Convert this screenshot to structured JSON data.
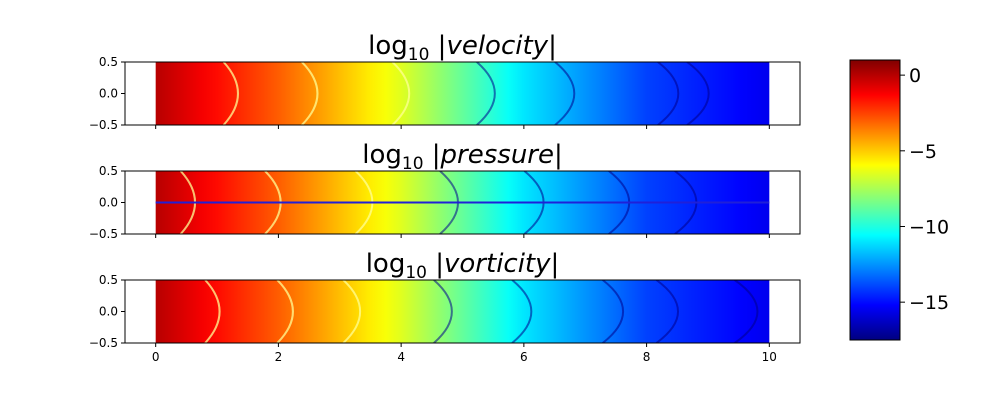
{
  "chart_data": [
    {
      "type": "heatmap",
      "title": {
        "prefix": "log",
        "subscript": "10",
        "word": "velocity"
      },
      "x_range": [
        0,
        10
      ],
      "y_range": [
        -0.5,
        0.5
      ],
      "xlim": [
        -0.5,
        10.5
      ],
      "ylim": [
        -0.5,
        0.5
      ],
      "yticks": [
        {
          "v": 0.5,
          "label": "0.5"
        },
        {
          "v": 0.0,
          "label": "0.0"
        },
        {
          "v": -0.5,
          "label": "−0.5"
        }
      ],
      "xticks_labeled": false,
      "field": {
        "log10_at_x": [
          [
            0,
            0
          ],
          [
            2,
            -3
          ],
          [
            4,
            -6.5
          ],
          [
            6,
            -11
          ],
          [
            8,
            -14
          ],
          [
            10,
            -15.5
          ]
        ],
        "arc_fronts_x": [
          1.4,
          2.7,
          4.2,
          5.6,
          6.9,
          8.6,
          9.1
        ],
        "centerline_line": false
      }
    },
    {
      "type": "heatmap",
      "title": {
        "prefix": "log",
        "subscript": "10",
        "word": "pressure"
      },
      "x_range": [
        0,
        10
      ],
      "y_range": [
        -0.5,
        0.5
      ],
      "xlim": [
        -0.5,
        10.5
      ],
      "ylim": [
        -0.5,
        0.5
      ],
      "yticks": [
        {
          "v": 0.5,
          "label": "0.5"
        },
        {
          "v": 0.0,
          "label": "0.0"
        },
        {
          "v": -0.5,
          "label": "−0.5"
        }
      ],
      "xticks_labeled": false,
      "field": {
        "log10_at_x": [
          [
            0,
            0
          ],
          [
            2,
            -3
          ],
          [
            4,
            -6.5
          ],
          [
            6,
            -11
          ],
          [
            8,
            -14
          ],
          [
            10,
            -15.5
          ]
        ],
        "arc_fronts_x": [
          0.7,
          2.1,
          3.6,
          5.0,
          6.4,
          7.8,
          8.9
        ],
        "centerline_line": true
      }
    },
    {
      "type": "heatmap",
      "title": {
        "prefix": "log",
        "subscript": "10",
        "word": "vorticity"
      },
      "x_range": [
        0,
        10
      ],
      "y_range": [
        -0.5,
        0.5
      ],
      "xlim": [
        -0.5,
        10.5
      ],
      "ylim": [
        -0.5,
        0.5
      ],
      "yticks": [
        {
          "v": 0.5,
          "label": "0.5"
        },
        {
          "v": 0.0,
          "label": "0.0"
        },
        {
          "v": -0.5,
          "label": "−0.5"
        }
      ],
      "xticks_labeled": true,
      "xticks": [
        {
          "v": 0,
          "label": "0"
        },
        {
          "v": 2,
          "label": "2"
        },
        {
          "v": 4,
          "label": "4"
        },
        {
          "v": 6,
          "label": "6"
        },
        {
          "v": 8,
          "label": "8"
        },
        {
          "v": 10,
          "label": "10"
        }
      ],
      "field": {
        "log10_at_x": [
          [
            0,
            0
          ],
          [
            2,
            -3
          ],
          [
            4,
            -6.5
          ],
          [
            6,
            -11
          ],
          [
            8,
            -14
          ],
          [
            10,
            -15.5
          ]
        ],
        "arc_fronts_x": [
          1.1,
          2.3,
          3.4,
          4.9,
          6.2,
          7.7,
          8.6,
          9.9
        ],
        "centerline_line": false
      }
    }
  ],
  "colorbar": {
    "colormap": "jet",
    "range": [
      -17.5,
      1
    ],
    "ticks": [
      {
        "v": 0,
        "label": "0"
      },
      {
        "v": -5,
        "label": "−5"
      },
      {
        "v": -10,
        "label": "−10"
      },
      {
        "v": -15,
        "label": "−15"
      }
    ]
  }
}
